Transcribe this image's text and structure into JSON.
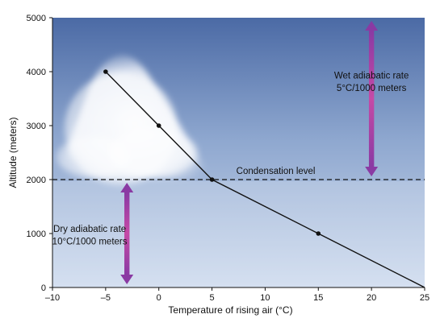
{
  "chart_data": {
    "type": "line",
    "xlabel": "Temperature of rising air (°C)",
    "ylabel": "Altitude (meters)",
    "xlim": [
      -10,
      25
    ],
    "ylim": [
      0,
      5000
    ],
    "x_ticks": [
      "–10",
      "–5",
      "0",
      "5",
      "10",
      "15",
      "20",
      "25"
    ],
    "y_ticks": [
      "0",
      "1000",
      "2000",
      "3000",
      "4000",
      "5000"
    ],
    "series": [
      {
        "x": [
          25,
          15,
          5,
          0,
          -5
        ],
        "y": [
          0,
          1000,
          2000,
          3000,
          4000
        ],
        "marked_points": [
          [
            15,
            1000
          ],
          [
            5,
            2000
          ],
          [
            0,
            3000
          ],
          [
            -5,
            4000
          ]
        ]
      }
    ],
    "condensation_level": {
      "y": 2000,
      "label": "Condensation level"
    },
    "annotations": {
      "wet": {
        "line1": "Wet adiabatic rate",
        "line2": "5°C/1000 meters",
        "arrow_x": 20,
        "arrow_y": [
          2000,
          5000
        ]
      },
      "dry": {
        "line1": "Dry adiabatic rate",
        "line2": "10°C/1000 meters",
        "arrow_x": -3,
        "arrow_y": [
          0,
          2000
        ]
      }
    },
    "grid": false,
    "colors": {
      "sky_top": "#4f6ea8",
      "sky_mid": "#93abd2",
      "sky_low": "#c7d6ea",
      "line": "#111111",
      "arrow": "#9b3fa6"
    }
  }
}
